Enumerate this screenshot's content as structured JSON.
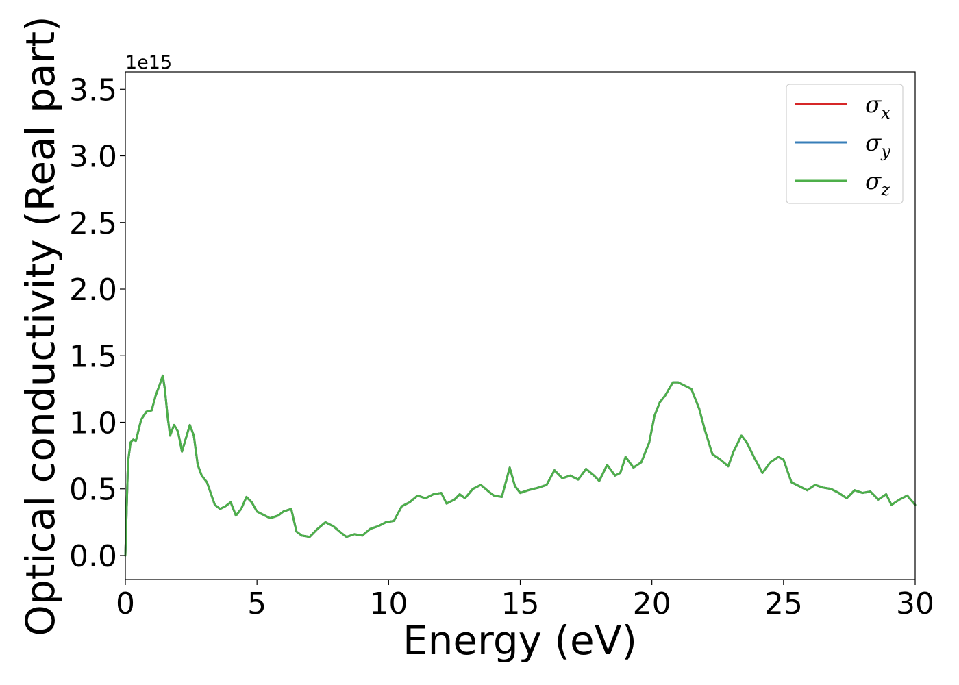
{
  "chart_data": {
    "type": "line",
    "xlabel": "Energy (eV)",
    "ylabel": "Optical conductivity (Real part)",
    "y_offset_label": "1e15",
    "xlim": [
      0,
      30
    ],
    "ylim": [
      -0.18,
      3.63
    ],
    "x_ticks": [
      0,
      5,
      10,
      15,
      20,
      25,
      30
    ],
    "x_tick_labels": [
      "0",
      "5",
      "10",
      "15",
      "20",
      "25",
      "30"
    ],
    "y_ticks": [
      0.0,
      0.5,
      1.0,
      1.5,
      2.0,
      2.5,
      3.0,
      3.5
    ],
    "y_tick_labels": [
      "0.0",
      "0.5",
      "1.0",
      "1.5",
      "2.0",
      "2.5",
      "3.0",
      "3.5"
    ],
    "grid": false,
    "legend_position": "top-right",
    "x": [
      0.0,
      0.1,
      0.2,
      0.3,
      0.4,
      0.6,
      0.8,
      1.0,
      1.15,
      1.3,
      1.42,
      1.5,
      1.6,
      1.7,
      1.85,
      2.0,
      2.15,
      2.3,
      2.45,
      2.6,
      2.75,
      2.9,
      3.1,
      3.4,
      3.6,
      3.8,
      4.0,
      4.2,
      4.4,
      4.6,
      4.8,
      5.0,
      5.2,
      5.5,
      5.8,
      6.0,
      6.3,
      6.5,
      6.7,
      7.0,
      7.3,
      7.6,
      7.9,
      8.2,
      8.4,
      8.7,
      9.0,
      9.3,
      9.6,
      9.9,
      10.2,
      10.5,
      10.8,
      11.1,
      11.4,
      11.7,
      12.0,
      12.2,
      12.5,
      12.7,
      12.9,
      13.2,
      13.5,
      13.8,
      14.0,
      14.3,
      14.6,
      14.8,
      15.0,
      15.3,
      15.7,
      16.0,
      16.3,
      16.6,
      16.9,
      17.2,
      17.5,
      17.8,
      18.0,
      18.3,
      18.6,
      18.8,
      19.0,
      19.3,
      19.6,
      19.9,
      20.1,
      20.3,
      20.5,
      20.8,
      21.0,
      21.2,
      21.5,
      21.8,
      22.0,
      22.3,
      22.6,
      22.9,
      23.1,
      23.4,
      23.6,
      23.9,
      24.2,
      24.5,
      24.8,
      25.0,
      25.3,
      25.6,
      25.9,
      26.2,
      26.5,
      26.8,
      27.1,
      27.4,
      27.7,
      28.0,
      28.3,
      28.6,
      28.9,
      29.1,
      29.4,
      29.7,
      30.0
    ],
    "series": [
      {
        "name": "σx",
        "color": "#d62728",
        "values": [
          0.0,
          0.7,
          0.85,
          0.87,
          0.86,
          1.02,
          1.08,
          1.09,
          1.2,
          1.28,
          1.35,
          1.25,
          1.05,
          0.9,
          0.98,
          0.93,
          0.78,
          0.88,
          0.98,
          0.9,
          0.68,
          0.6,
          0.55,
          0.38,
          0.35,
          0.37,
          0.4,
          0.3,
          0.35,
          0.44,
          0.4,
          0.33,
          0.31,
          0.28,
          0.3,
          0.33,
          0.35,
          0.18,
          0.15,
          0.14,
          0.2,
          0.25,
          0.22,
          0.17,
          0.14,
          0.16,
          0.15,
          0.2,
          0.22,
          0.25,
          0.26,
          0.37,
          0.4,
          0.45,
          0.43,
          0.46,
          0.47,
          0.39,
          0.42,
          0.46,
          0.43,
          0.5,
          0.53,
          0.48,
          0.45,
          0.44,
          0.66,
          0.52,
          0.47,
          0.49,
          0.51,
          0.53,
          0.64,
          0.58,
          0.6,
          0.57,
          0.65,
          0.6,
          0.56,
          0.68,
          0.6,
          0.62,
          0.74,
          0.66,
          0.7,
          0.85,
          1.05,
          1.15,
          1.2,
          1.3,
          1.3,
          1.28,
          1.25,
          1.1,
          0.95,
          0.76,
          0.72,
          0.67,
          0.78,
          0.9,
          0.85,
          0.73,
          0.62,
          0.7,
          0.74,
          0.72,
          0.55,
          0.52,
          0.49,
          0.53,
          0.51,
          0.5,
          0.47,
          0.43,
          0.49,
          0.47,
          0.48,
          0.42,
          0.46,
          0.38,
          0.42,
          0.45,
          0.38
        ]
      },
      {
        "name": "σy",
        "color": "#377eb8",
        "values": [
          0.0,
          0.7,
          0.85,
          0.87,
          0.86,
          1.02,
          1.08,
          1.09,
          1.2,
          1.28,
          1.35,
          1.25,
          1.05,
          0.9,
          0.98,
          0.93,
          0.78,
          0.88,
          0.98,
          0.9,
          0.68,
          0.6,
          0.55,
          0.38,
          0.35,
          0.37,
          0.4,
          0.3,
          0.35,
          0.44,
          0.4,
          0.33,
          0.31,
          0.28,
          0.3,
          0.33,
          0.35,
          0.18,
          0.15,
          0.14,
          0.2,
          0.25,
          0.22,
          0.17,
          0.14,
          0.16,
          0.15,
          0.2,
          0.22,
          0.25,
          0.26,
          0.37,
          0.4,
          0.45,
          0.43,
          0.46,
          0.47,
          0.39,
          0.42,
          0.46,
          0.43,
          0.5,
          0.53,
          0.48,
          0.45,
          0.44,
          0.66,
          0.52,
          0.47,
          0.49,
          0.51,
          0.53,
          0.64,
          0.58,
          0.6,
          0.57,
          0.65,
          0.6,
          0.56,
          0.68,
          0.6,
          0.62,
          0.74,
          0.66,
          0.7,
          0.85,
          1.05,
          1.15,
          1.2,
          1.3,
          1.3,
          1.28,
          1.25,
          1.1,
          0.95,
          0.76,
          0.72,
          0.67,
          0.78,
          0.9,
          0.85,
          0.73,
          0.62,
          0.7,
          0.74,
          0.72,
          0.55,
          0.52,
          0.49,
          0.53,
          0.51,
          0.5,
          0.47,
          0.43,
          0.49,
          0.47,
          0.48,
          0.42,
          0.46,
          0.38,
          0.42,
          0.45,
          0.38
        ]
      },
      {
        "name": "σz",
        "color": "#4daf4a",
        "values": [
          0.0,
          0.7,
          0.85,
          0.87,
          0.86,
          1.02,
          1.08,
          1.09,
          1.2,
          1.28,
          1.35,
          1.25,
          1.05,
          0.9,
          0.98,
          0.93,
          0.78,
          0.88,
          0.98,
          0.9,
          0.68,
          0.6,
          0.55,
          0.38,
          0.35,
          0.37,
          0.4,
          0.3,
          0.35,
          0.44,
          0.4,
          0.33,
          0.31,
          0.28,
          0.3,
          0.33,
          0.35,
          0.18,
          0.15,
          0.14,
          0.2,
          0.25,
          0.22,
          0.17,
          0.14,
          0.16,
          0.15,
          0.2,
          0.22,
          0.25,
          0.26,
          0.37,
          0.4,
          0.45,
          0.43,
          0.46,
          0.47,
          0.39,
          0.42,
          0.46,
          0.43,
          0.5,
          0.53,
          0.48,
          0.45,
          0.44,
          0.66,
          0.52,
          0.47,
          0.49,
          0.51,
          0.53,
          0.64,
          0.58,
          0.6,
          0.57,
          0.65,
          0.6,
          0.56,
          0.68,
          0.6,
          0.62,
          0.74,
          0.66,
          0.7,
          0.85,
          1.05,
          1.15,
          1.2,
          1.3,
          1.3,
          1.28,
          1.25,
          1.1,
          0.95,
          0.76,
          0.72,
          0.67,
          0.78,
          0.9,
          0.85,
          0.73,
          0.62,
          0.7,
          0.74,
          0.72,
          0.55,
          0.52,
          0.49,
          0.53,
          0.51,
          0.5,
          0.47,
          0.43,
          0.49,
          0.47,
          0.48,
          0.42,
          0.46,
          0.38,
          0.42,
          0.45,
          0.38
        ]
      }
    ],
    "legend": [
      {
        "symbol": "σ",
        "sub": "x",
        "color": "#d62728"
      },
      {
        "symbol": "σ",
        "sub": "y",
        "color": "#377eb8"
      },
      {
        "symbol": "σ",
        "sub": "z",
        "color": "#4daf4a"
      }
    ]
  }
}
